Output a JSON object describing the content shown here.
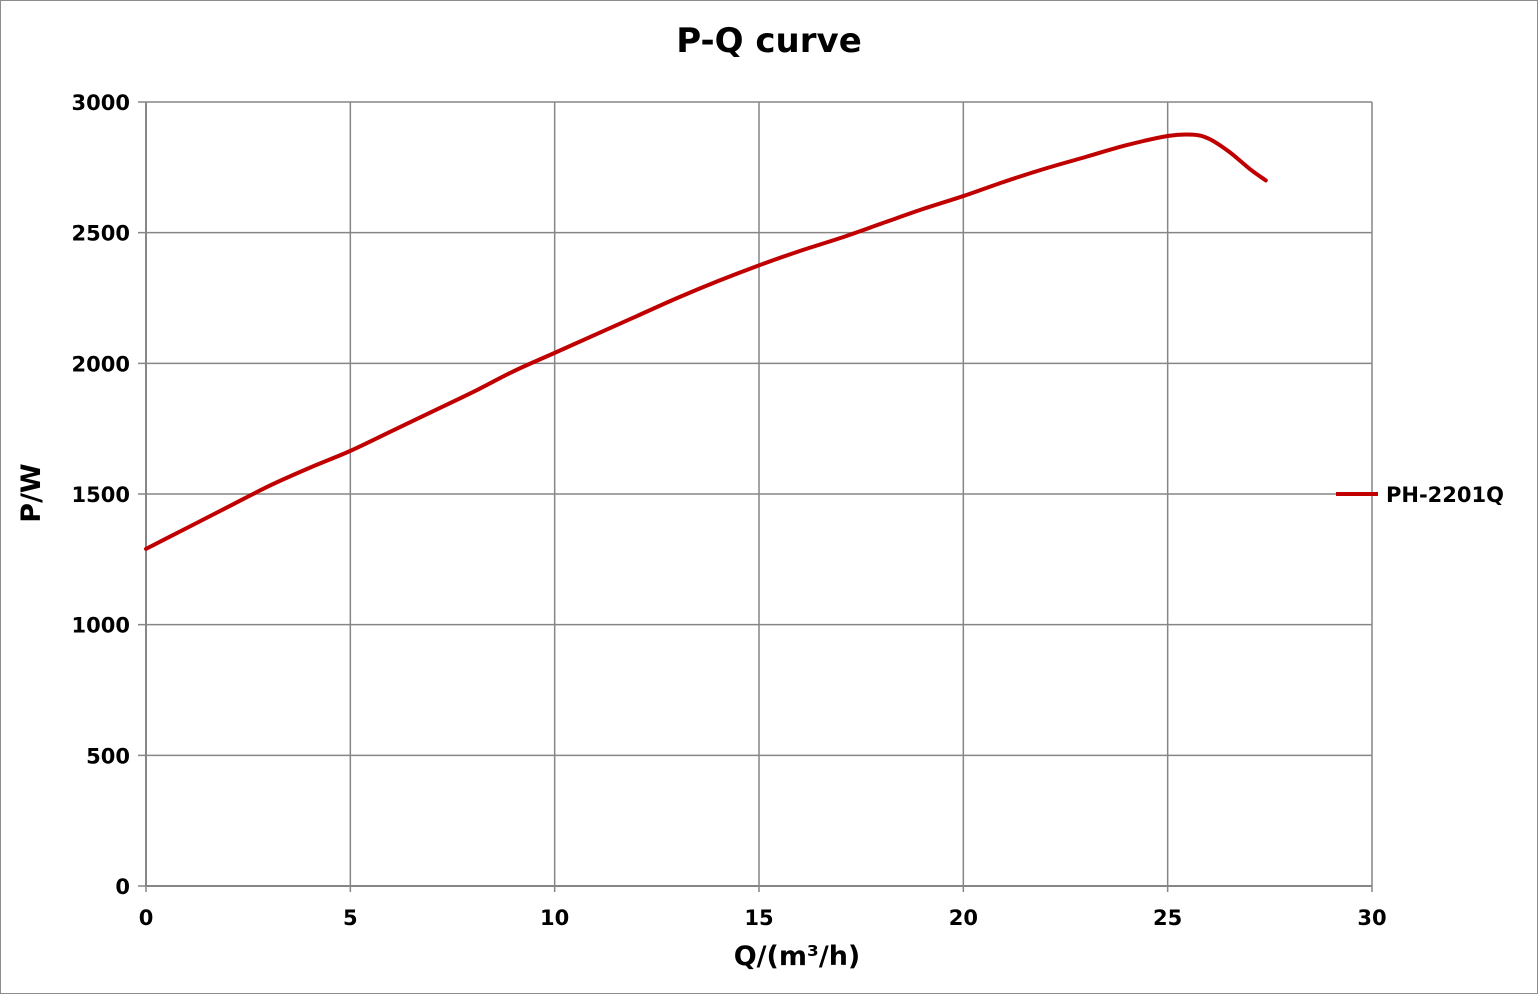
{
  "chart_data": {
    "type": "line",
    "title": "P-Q  curve",
    "xlabel": "Q/(m³/h)",
    "ylabel": "P/W",
    "xlim": [
      0,
      30
    ],
    "ylim": [
      0,
      3000
    ],
    "x_ticks": [
      "0",
      "5",
      "10",
      "15",
      "20",
      "25",
      "30"
    ],
    "y_ticks": [
      "0",
      "500",
      "1000",
      "1500",
      "2000",
      "2500",
      "3000"
    ],
    "grid": true,
    "legend_position": "right",
    "series": [
      {
        "name": "PH-2201Q",
        "color": "#c00000",
        "x": [
          0,
          1,
          2,
          3,
          4,
          5,
          6,
          7,
          8,
          9,
          10,
          11,
          12,
          13,
          14,
          15,
          16,
          17,
          18,
          19,
          20,
          21,
          22,
          23,
          24,
          25,
          25.6,
          26,
          26.5,
          27,
          27.4
        ],
        "y": [
          1290,
          1370,
          1450,
          1530,
          1600,
          1665,
          1740,
          1815,
          1890,
          1970,
          2040,
          2110,
          2180,
          2250,
          2315,
          2375,
          2430,
          2480,
          2535,
          2590,
          2640,
          2695,
          2745,
          2790,
          2835,
          2870,
          2875,
          2860,
          2810,
          2745,
          2700
        ]
      }
    ]
  }
}
